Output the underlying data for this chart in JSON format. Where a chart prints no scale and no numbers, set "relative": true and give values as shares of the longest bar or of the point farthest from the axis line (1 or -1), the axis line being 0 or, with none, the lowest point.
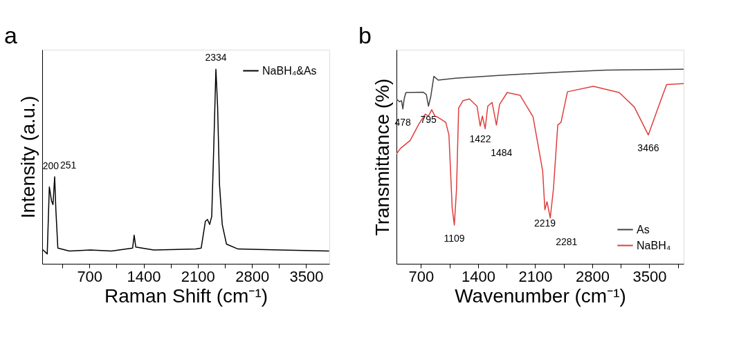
{
  "chart_data": [
    {
      "type": "line",
      "relative": true,
      "xlabel": "Raman Shift (cm⁻¹)",
      "ylabel": "Intensity (a.u.)",
      "xlim": [
        90,
        3800
      ],
      "xticks": [
        {
          "value": 350,
          "label": null
        },
        700,
        {
          "value": 1050,
          "label": null
        },
        1400,
        {
          "value": 1750,
          "label": null
        },
        2100,
        {
          "value": 2450,
          "label": null
        },
        2800,
        {
          "value": 3150,
          "label": null
        },
        3500
      ],
      "legend": "top right",
      "grid": false,
      "marker": "none",
      "line_style": "solid",
      "annotations": [
        "a",
        {
          "text": "200",
          "x": 200,
          "y": 0.38
        },
        {
          "text": "251",
          "x": 251,
          "y": 0.447
        },
        {
          "text": "2334",
          "x": 2334,
          "y": 1
        }
      ],
      "series": [
        {
          "name": "NaBH₄&As",
          "color": "#000000",
          "x": [
            101,
            155,
            182,
            210,
            229,
            251,
            267,
            292,
            441,
            714,
            986,
            1258,
            1278,
            1299,
            1531,
            2076,
            2144,
            2198,
            2225,
            2253,
            2280,
            2307,
            2334,
            2356,
            2381,
            2416,
            2471,
            2620,
            3165,
            3792
          ],
          "values": [
            0.071,
            0.051,
            0.395,
            0.324,
            0.304,
            0.447,
            0.273,
            0.081,
            0.066,
            0.071,
            0.066,
            0.081,
            0.147,
            0.086,
            0.071,
            0.076,
            0.081,
            0.218,
            0.228,
            0.202,
            0.243,
            0.607,
            1,
            0.81,
            0.405,
            0.202,
            0.101,
            0.076,
            0.071,
            0.066
          ]
        }
      ]
    },
    {
      "type": "line",
      "relative": true,
      "xlabel": "Wavenumber (cm⁻¹)",
      "ylabel": "Transmittance (%)",
      "xlim": [
        400,
        3920
      ],
      "xticks": [
        700,
        {
          "value": 1050,
          "label": null
        },
        1400,
        {
          "value": 1750,
          "label": null
        },
        2100,
        {
          "value": 2450,
          "label": null
        },
        2800,
        {
          "value": 3150,
          "label": null
        },
        3500,
        {
          "value": 3850,
          "label": null
        }
      ],
      "legend": "bottom right",
      "grid": false,
      "marker": "none",
      "line_style": "solid",
      "annotations": [
        "b",
        {
          "text": "478",
          "x": 478,
          "y": 0.796
        },
        {
          "text": "795",
          "x": 792,
          "y": 0.81
        },
        {
          "text": "1109",
          "x": 1109,
          "y": 0.199
        },
        {
          "text": "1422",
          "x": 1426,
          "y": 0.708
        },
        {
          "text": "1484",
          "x": 1487,
          "y": 0.694
        },
        {
          "text": "2219",
          "x": 2219,
          "y": 0.278
        },
        {
          "text": "2281",
          "x": 2285,
          "y": 0.236
        },
        {
          "text": "3466",
          "x": 3487,
          "y": 0.662
        }
      ],
      "series": [
        {
          "name": "As",
          "color": "#404040",
          "x": [
            400,
            436,
            462,
            478,
            494,
            515,
            726,
            766,
            792,
            819,
            858,
            911,
            1123,
            1651,
            2443,
            2972,
            3920
          ],
          "values": [
            0.847,
            0.833,
            0.838,
            0.796,
            0.847,
            0.88,
            0.882,
            0.87,
            0.81,
            0.856,
            0.963,
            0.944,
            0.954,
            0.968,
            0.986,
            0.995,
            1
          ]
        },
        {
          "name": "NaBH₄",
          "color": "#e03c3c",
          "x": [
            400,
            449,
            568,
            674,
            753,
            792,
            832,
            872,
            898,
            1004,
            1043,
            1083,
            1109,
            1136,
            1162,
            1215,
            1294,
            1387,
            1426,
            1453,
            1487,
            1519,
            1572,
            1625,
            1664,
            1757,
            1915,
            2074,
            2192,
            2219,
            2245,
            2285,
            2324,
            2377,
            2417,
            2496,
            2813,
            3130,
            3315,
            3487,
            3606,
            3711,
            3920
          ],
          "values": [
            0.565,
            0.593,
            0.634,
            0.718,
            0.769,
            0.759,
            0.792,
            0.759,
            0.755,
            0.727,
            0.662,
            0.287,
            0.199,
            0.384,
            0.801,
            0.838,
            0.847,
            0.81,
            0.708,
            0.759,
            0.694,
            0.81,
            0.829,
            0.713,
            0.819,
            0.88,
            0.866,
            0.755,
            0.477,
            0.278,
            0.319,
            0.236,
            0.384,
            0.713,
            0.727,
            0.884,
            0.912,
            0.88,
            0.806,
            0.662,
            0.801,
            0.921,
            0.926
          ]
        }
      ]
    }
  ]
}
